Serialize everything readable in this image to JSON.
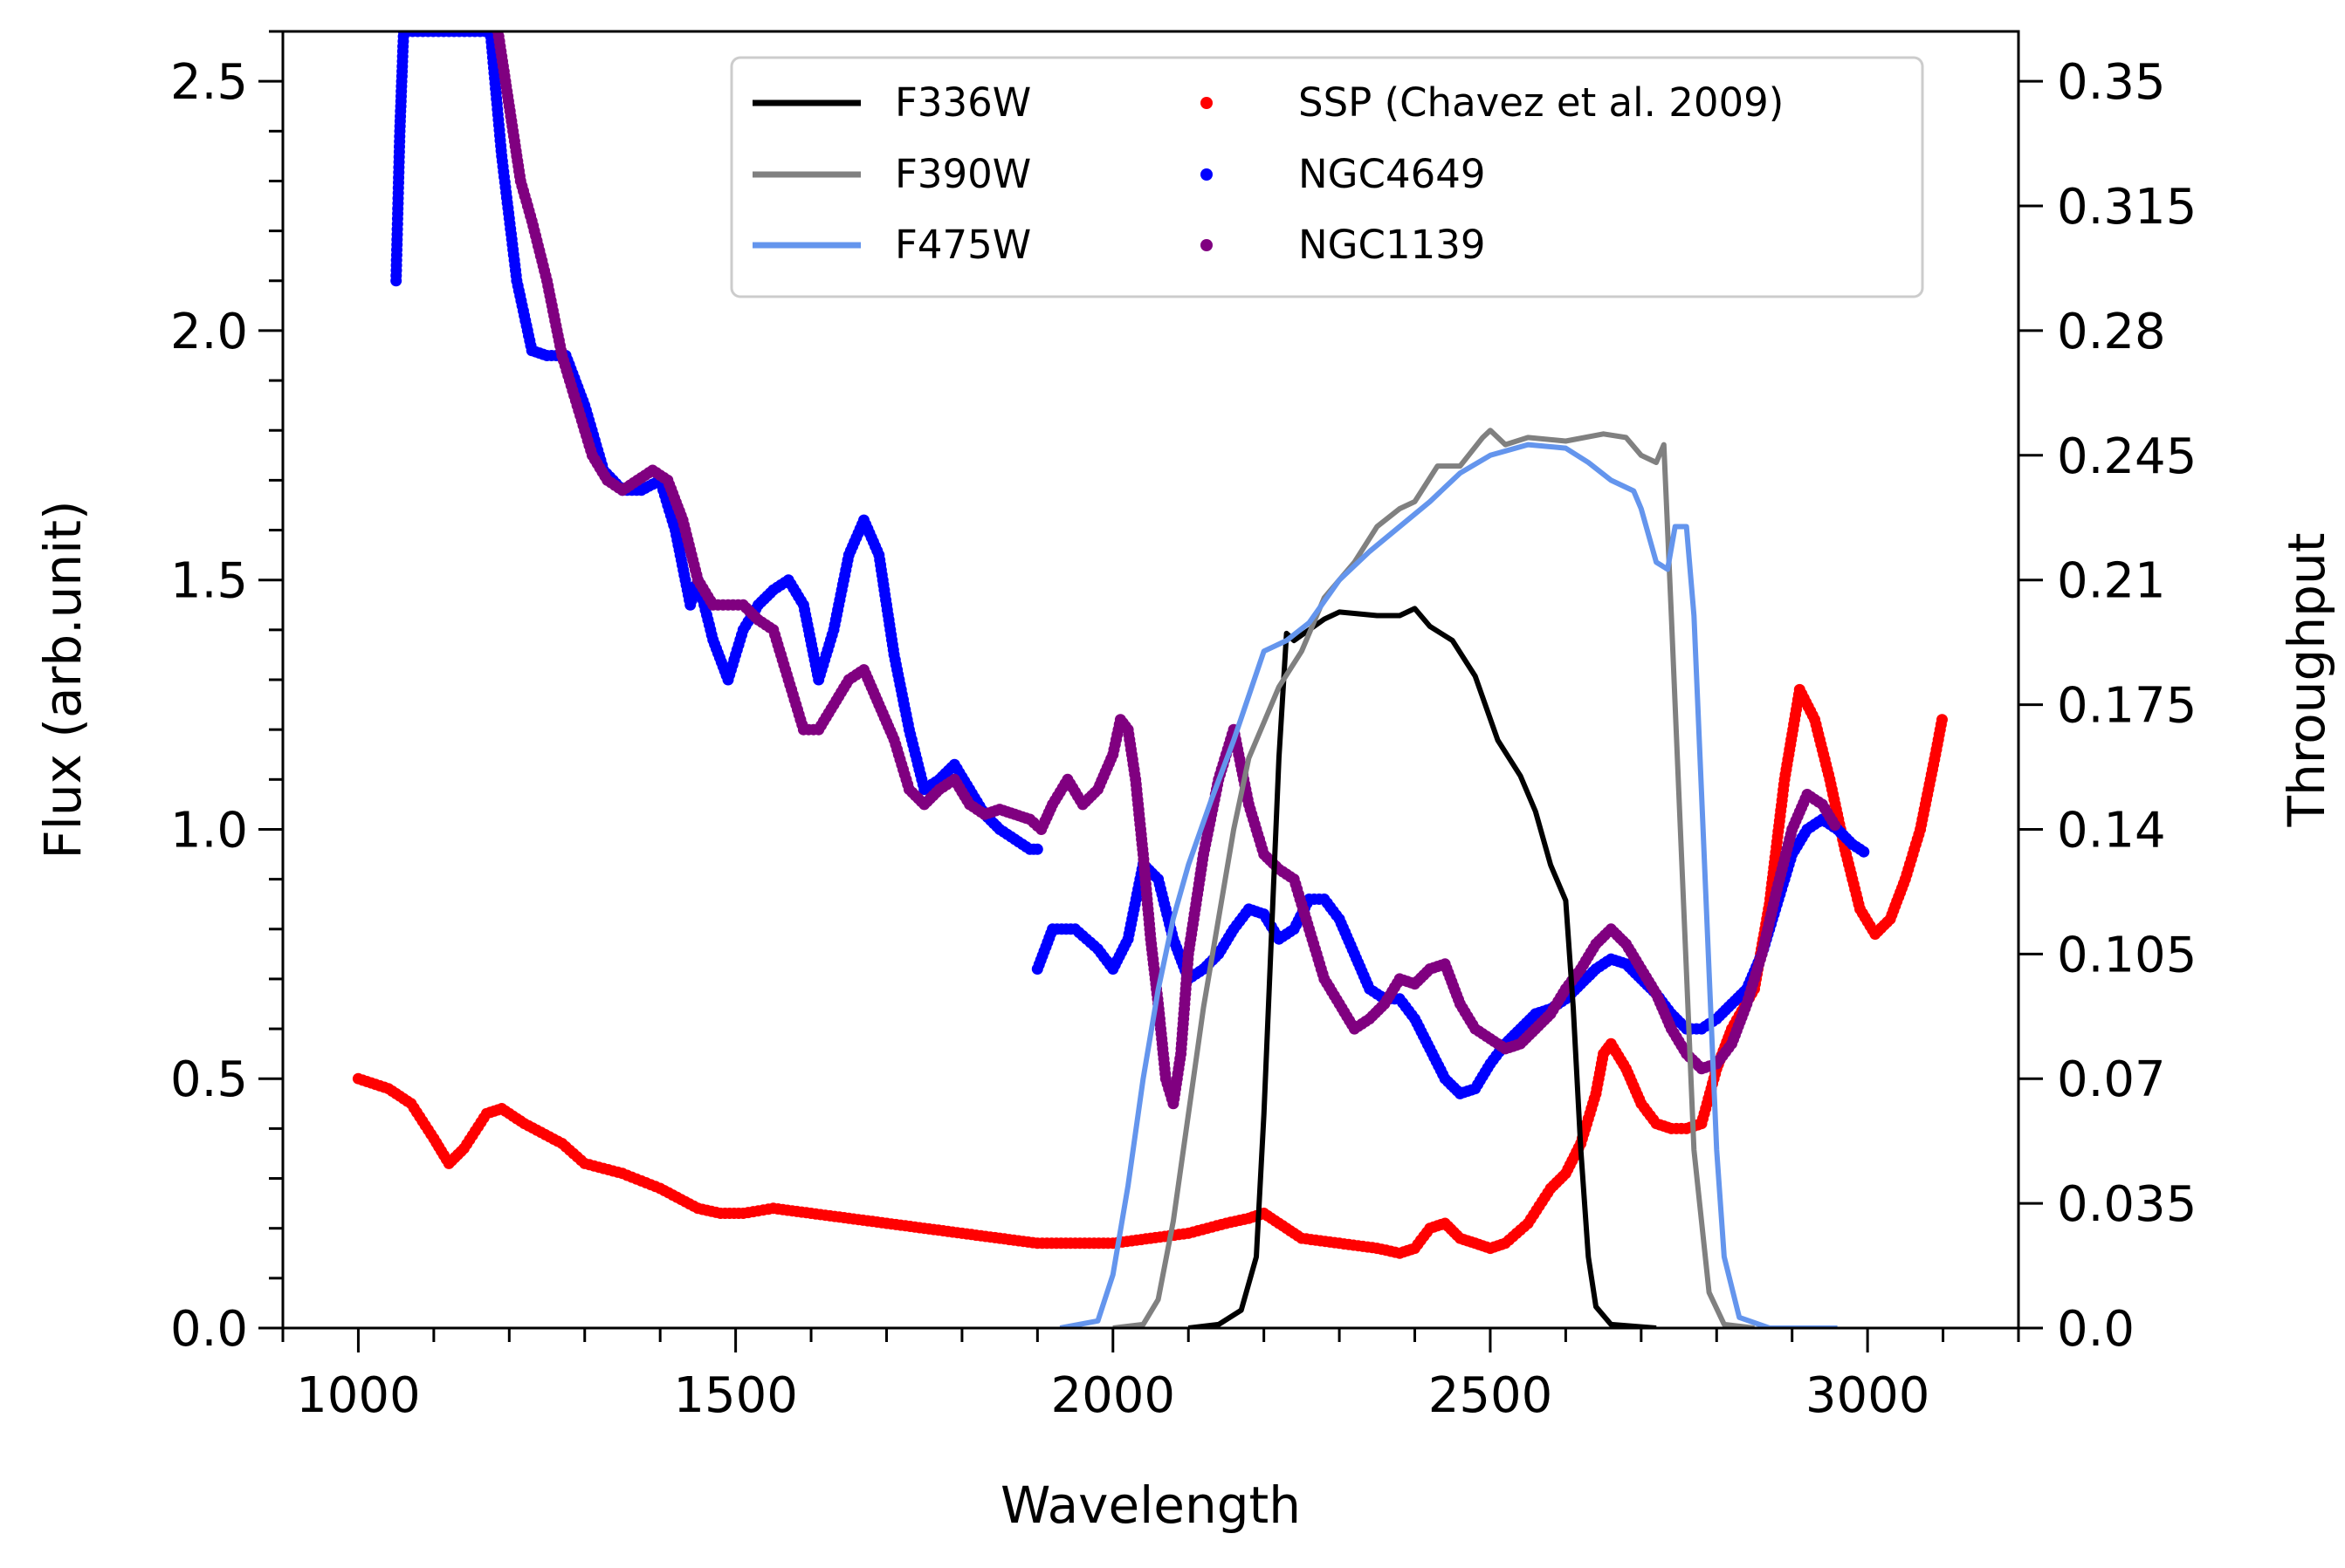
{
  "chart_data": {
    "type": "line",
    "title": "",
    "xlabel": "Wavelength",
    "ylabel": "Flux (arb.unit)",
    "y2label": "Throughput",
    "xlim": [
      900,
      3200
    ],
    "ylim": [
      0,
      2.6
    ],
    "y2lim": [
      0,
      0.364
    ],
    "x_ticks": [
      1000,
      1500,
      2000,
      2500,
      3000
    ],
    "x_tick_labels": [
      "1000",
      "1500",
      "2000",
      "2500",
      "3000"
    ],
    "y_ticks": [
      0,
      0.5,
      1.0,
      1.5,
      2.0,
      2.5
    ],
    "y_tick_labels": [
      "0.0",
      "0.5",
      "1.0",
      "1.5",
      "2.0",
      "2.5"
    ],
    "y2_ticks": [
      0,
      0.035,
      0.07,
      0.105,
      0.14,
      0.175,
      0.21,
      0.245,
      0.28,
      0.315,
      0.35
    ],
    "y2_tick_labels": [
      "0.0",
      "0.035",
      "0.07",
      "0.105",
      "0.14",
      "0.175",
      "0.21",
      "0.245",
      "0.28",
      "0.315",
      "0.35"
    ],
    "legend_position": "top-right",
    "filters": [
      {
        "name": "F336W",
        "color": "#000000",
        "axis": "right",
        "x": [
          2100,
          2140,
          2170,
          2190,
          2200,
          2210,
          2220,
          2230,
          2240,
          2260,
          2280,
          2300,
          2350,
          2380,
          2400,
          2420,
          2450,
          2480,
          2510,
          2540,
          2560,
          2580,
          2600,
          2610,
          2620,
          2630,
          2640,
          2660,
          2720
        ],
        "values": [
          0,
          0.001,
          0.005,
          0.02,
          0.06,
          0.11,
          0.16,
          0.195,
          0.193,
          0.196,
          0.199,
          0.201,
          0.2,
          0.2,
          0.202,
          0.197,
          0.193,
          0.183,
          0.165,
          0.155,
          0.145,
          0.13,
          0.12,
          0.09,
          0.05,
          0.02,
          0.006,
          0.001,
          0
        ]
      },
      {
        "name": "F390W",
        "color": "#808080",
        "axis": "right",
        "x": [
          2000,
          2040,
          2060,
          2080,
          2100,
          2120,
          2140,
          2160,
          2180,
          2200,
          2220,
          2250,
          2280,
          2300,
          2320,
          2350,
          2380,
          2400,
          2430,
          2460,
          2490,
          2500,
          2520,
          2550,
          2600,
          2650,
          2680,
          2700,
          2720,
          2730,
          2740,
          2750,
          2760,
          2770,
          2790,
          2810,
          2850
        ],
        "values": [
          0,
          0.001,
          0.008,
          0.03,
          0.06,
          0.09,
          0.115,
          0.14,
          0.16,
          0.17,
          0.18,
          0.19,
          0.205,
          0.21,
          0.215,
          0.225,
          0.23,
          0.232,
          0.242,
          0.242,
          0.25,
          0.252,
          0.248,
          0.25,
          0.249,
          0.251,
          0.25,
          0.245,
          0.243,
          0.248,
          0.2,
          0.15,
          0.1,
          0.05,
          0.01,
          0.001,
          0
        ]
      },
      {
        "name": "F475W",
        "color": "#6495ed",
        "axis": "right",
        "x": [
          1930,
          1980,
          2000,
          2020,
          2040,
          2060,
          2080,
          2100,
          2130,
          2160,
          2200,
          2230,
          2260,
          2300,
          2340,
          2380,
          2420,
          2460,
          2500,
          2550,
          2600,
          2630,
          2660,
          2690,
          2700,
          2720,
          2735,
          2745,
          2760,
          2770,
          2780,
          2790,
          2800,
          2810,
          2830,
          2870,
          2960
        ],
        "values": [
          0,
          0.002,
          0.015,
          0.04,
          0.07,
          0.095,
          0.115,
          0.13,
          0.148,
          0.165,
          0.19,
          0.193,
          0.198,
          0.21,
          0.218,
          0.225,
          0.232,
          0.24,
          0.245,
          0.248,
          0.247,
          0.243,
          0.238,
          0.235,
          0.23,
          0.215,
          0.213,
          0.225,
          0.225,
          0.2,
          0.15,
          0.1,
          0.05,
          0.02,
          0.003,
          0,
          0
        ]
      }
    ],
    "series": [
      {
        "name": "SSP (Chavez et al. 2009)",
        "color": "#ff0000",
        "axis": "left",
        "x": [
          1000,
          1040,
          1070,
          1100,
          1120,
          1140,
          1170,
          1190,
          1220,
          1270,
          1300,
          1350,
          1400,
          1450,
          1480,
          1510,
          1550,
          1600,
          1650,
          1700,
          1750,
          1800,
          1850,
          1900,
          1950,
          2000,
          2050,
          2100,
          2150,
          2180,
          2200,
          2220,
          2250,
          2300,
          2350,
          2380,
          2400,
          2420,
          2440,
          2460,
          2480,
          2500,
          2520,
          2550,
          2580,
          2600,
          2620,
          2640,
          2650,
          2660,
          2680,
          2700,
          2720,
          2740,
          2760,
          2780,
          2800,
          2820,
          2850,
          2870,
          2890,
          2910,
          2930,
          2950,
          2970,
          2990,
          3010,
          3030,
          3050,
          3070,
          3090,
          3100
        ],
        "values": [
          0.5,
          0.48,
          0.45,
          0.38,
          0.33,
          0.36,
          0.43,
          0.44,
          0.41,
          0.37,
          0.33,
          0.31,
          0.28,
          0.24,
          0.23,
          0.23,
          0.24,
          0.23,
          0.22,
          0.21,
          0.2,
          0.19,
          0.18,
          0.17,
          0.17,
          0.17,
          0.18,
          0.19,
          0.21,
          0.22,
          0.23,
          0.21,
          0.18,
          0.17,
          0.16,
          0.15,
          0.16,
          0.2,
          0.21,
          0.18,
          0.17,
          0.16,
          0.17,
          0.21,
          0.28,
          0.31,
          0.37,
          0.47,
          0.55,
          0.57,
          0.52,
          0.45,
          0.41,
          0.4,
          0.4,
          0.41,
          0.52,
          0.6,
          0.68,
          0.85,
          1.1,
          1.28,
          1.22,
          1.1,
          0.96,
          0.84,
          0.79,
          0.82,
          0.9,
          1.0,
          1.15,
          1.23
        ]
      },
      {
        "name": "NGC4649",
        "color": "#0000ff",
        "axis": "left",
        "x": [
          1050,
          1055,
          1060,
          1065,
          1175,
          1190,
          1210,
          1230,
          1250,
          1275,
          1300,
          1325,
          1350,
          1375,
          1400,
          1420,
          1440,
          1450,
          1470,
          1490,
          1510,
          1530,
          1550,
          1570,
          1590,
          1610,
          1630,
          1650,
          1670,
          1690,
          1710,
          1730,
          1750,
          1770,
          1790,
          1810,
          1830,
          1850,
          1870,
          1890,
          1905,
          1900,
          1920,
          1950,
          1980,
          2000,
          2020,
          2040,
          2060,
          2080,
          2100,
          2120,
          2140,
          2160,
          2180,
          2200,
          2220,
          2240,
          2260,
          2280,
          2300,
          2320,
          2340,
          2360,
          2380,
          2400,
          2420,
          2440,
          2460,
          2480,
          2500,
          2520,
          2540,
          2560,
          2580,
          2600,
          2620,
          2640,
          2660,
          2680,
          2700,
          2720,
          2740,
          2760,
          2780,
          2800,
          2820,
          2840,
          2860,
          2880,
          2900,
          2920,
          2940,
          2960,
          2980,
          3000
        ],
        "values": [
          2.1,
          2.4,
          2.6,
          2.6,
          2.6,
          2.35,
          2.1,
          1.96,
          1.95,
          1.95,
          1.85,
          1.72,
          1.68,
          1.68,
          1.7,
          1.6,
          1.45,
          1.5,
          1.38,
          1.3,
          1.4,
          1.45,
          1.48,
          1.5,
          1.45,
          1.3,
          1.4,
          1.55,
          1.62,
          1.55,
          1.35,
          1.2,
          1.08,
          1.1,
          1.13,
          1.08,
          1.03,
          1.0,
          0.98,
          0.96,
          0.96,
          0.72,
          0.8,
          0.8,
          0.76,
          0.72,
          0.78,
          0.93,
          0.9,
          0.78,
          0.7,
          0.72,
          0.75,
          0.8,
          0.84,
          0.83,
          0.78,
          0.8,
          0.86,
          0.86,
          0.82,
          0.75,
          0.68,
          0.66,
          0.66,
          0.62,
          0.56,
          0.5,
          0.47,
          0.48,
          0.53,
          0.57,
          0.6,
          0.63,
          0.64,
          0.66,
          0.69,
          0.72,
          0.74,
          0.73,
          0.7,
          0.67,
          0.63,
          0.6,
          0.6,
          0.62,
          0.65,
          0.68,
          0.75,
          0.85,
          0.95,
          1.0,
          1.02,
          1.0,
          0.97,
          0.95
        ]
      },
      {
        "name": "NGC1139",
        "color": "#800080",
        "axis": "left",
        "x": [
          1185,
          1200,
          1215,
          1230,
          1250,
          1270,
          1290,
          1310,
          1330,
          1350,
          1370,
          1390,
          1410,
          1430,
          1450,
          1470,
          1490,
          1510,
          1530,
          1550,
          1570,
          1590,
          1610,
          1630,
          1650,
          1670,
          1690,
          1710,
          1730,
          1750,
          1770,
          1790,
          1810,
          1830,
          1850,
          1870,
          1890,
          1905,
          1920,
          1940,
          1960,
          1980,
          2000,
          2010,
          2020,
          2030,
          2040,
          2050,
          2060,
          2070,
          2080,
          2090,
          2100,
          2120,
          2140,
          2160,
          2180,
          2200,
          2220,
          2240,
          2260,
          2280,
          2300,
          2320,
          2340,
          2360,
          2380,
          2400,
          2420,
          2440,
          2460,
          2480,
          2500,
          2520,
          2540,
          2560,
          2580,
          2600,
          2620,
          2640,
          2660,
          2680,
          2700,
          2720,
          2740,
          2760,
          2780,
          2800,
          2820,
          2840,
          2860,
          2880,
          2900,
          2920,
          2940,
          2960
        ],
        "values": [
          2.6,
          2.45,
          2.3,
          2.22,
          2.1,
          1.95,
          1.85,
          1.75,
          1.7,
          1.68,
          1.7,
          1.72,
          1.7,
          1.62,
          1.5,
          1.45,
          1.45,
          1.45,
          1.42,
          1.4,
          1.3,
          1.2,
          1.2,
          1.25,
          1.3,
          1.32,
          1.25,
          1.18,
          1.08,
          1.05,
          1.08,
          1.1,
          1.05,
          1.03,
          1.04,
          1.03,
          1.02,
          1.0,
          1.05,
          1.1,
          1.05,
          1.08,
          1.15,
          1.22,
          1.2,
          1.1,
          0.95,
          0.78,
          0.65,
          0.5,
          0.45,
          0.55,
          0.75,
          0.95,
          1.1,
          1.2,
          1.05,
          0.95,
          0.92,
          0.9,
          0.8,
          0.7,
          0.65,
          0.6,
          0.62,
          0.65,
          0.7,
          0.69,
          0.72,
          0.73,
          0.65,
          0.6,
          0.58,
          0.56,
          0.57,
          0.6,
          0.63,
          0.68,
          0.72,
          0.77,
          0.8,
          0.77,
          0.72,
          0.67,
          0.6,
          0.55,
          0.52,
          0.53,
          0.57,
          0.65,
          0.75,
          0.88,
          1.0,
          1.07,
          1.05,
          1.0
        ]
      }
    ]
  }
}
